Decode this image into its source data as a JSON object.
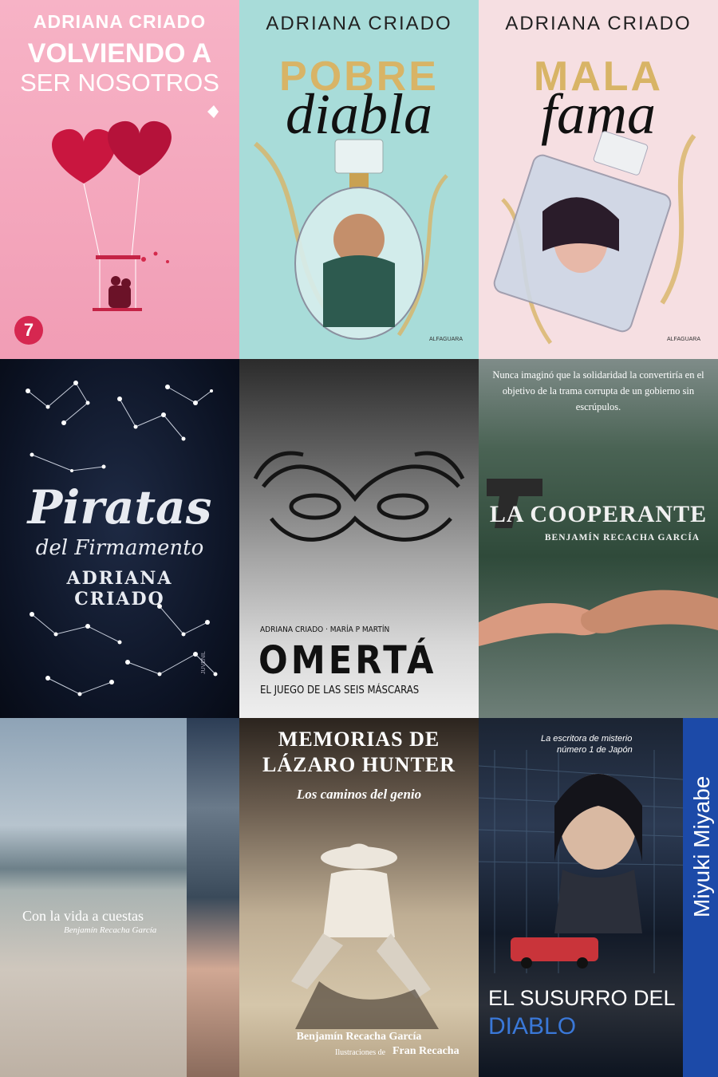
{
  "books": [
    {
      "author": "ADRIANA CRIADO",
      "title_line1": "VOLVIENDO A",
      "title_line2": "SER NOSOTROS",
      "badge": "7",
      "bg": "#f4a7bd"
    },
    {
      "author": "ADRIANA CRIADO",
      "title_top": "POBRE",
      "title_script": "diabla",
      "publisher": "ALFAGUARA",
      "bg": "#a8dcd9"
    },
    {
      "author": "ADRIANA CRIADO",
      "title_top": "MALA",
      "title_script": "fama",
      "publisher": "ALFAGUARA",
      "bg": "#f6dfe2"
    },
    {
      "title_line1": "Piratas",
      "title_line2": "del Firmamento",
      "author_line1": "ADRIANA",
      "author_line2": "CRIADO",
      "imprint": "JUVENIL",
      "bg": "#0c1324"
    },
    {
      "authors": "ADRIANA CRIADO · MARÍA P MARTÍN",
      "title": "OMERTÁ",
      "subtitle": "EL JUEGO DE LAS SEIS MÁSCARAS",
      "bg": "#8a8a8a"
    },
    {
      "tagline": "Nunca imaginó que la solidaridad la convertiría en el objetivo de la trama corrupta de un gobierno sin escrúpulos.",
      "title": "LA COOPERANTE",
      "author": "BENJAMÍN RECACHA GARCÍA",
      "bg": "#3f5a4a"
    },
    {
      "title": "Con la vida a cuestas",
      "author": "Benjamín Recacha García",
      "bg": "#c9c2b9"
    },
    {
      "title_line1": "MEMORIAS DE",
      "title_line2": "LÁZARO HUNTER",
      "subtitle": "Los caminos del genio",
      "author": "Benjamín Recacha García",
      "illustrations_label": "Ilustraciones de",
      "illustrator": "Fran Recacha",
      "bg": "#c8b99f"
    },
    {
      "tagline_line1": "La escritora de misterio",
      "tagline_line2": "número 1 de Japón",
      "author": "Miyuki Miyabe",
      "title_line1": "EL SUSURRO DEL",
      "title_line2": "DIABLO",
      "bg": "#0d1420"
    }
  ],
  "colors": {
    "pink_accent": "#d62750",
    "gold": "#d8b466",
    "blue_title": "#3a78d8"
  }
}
